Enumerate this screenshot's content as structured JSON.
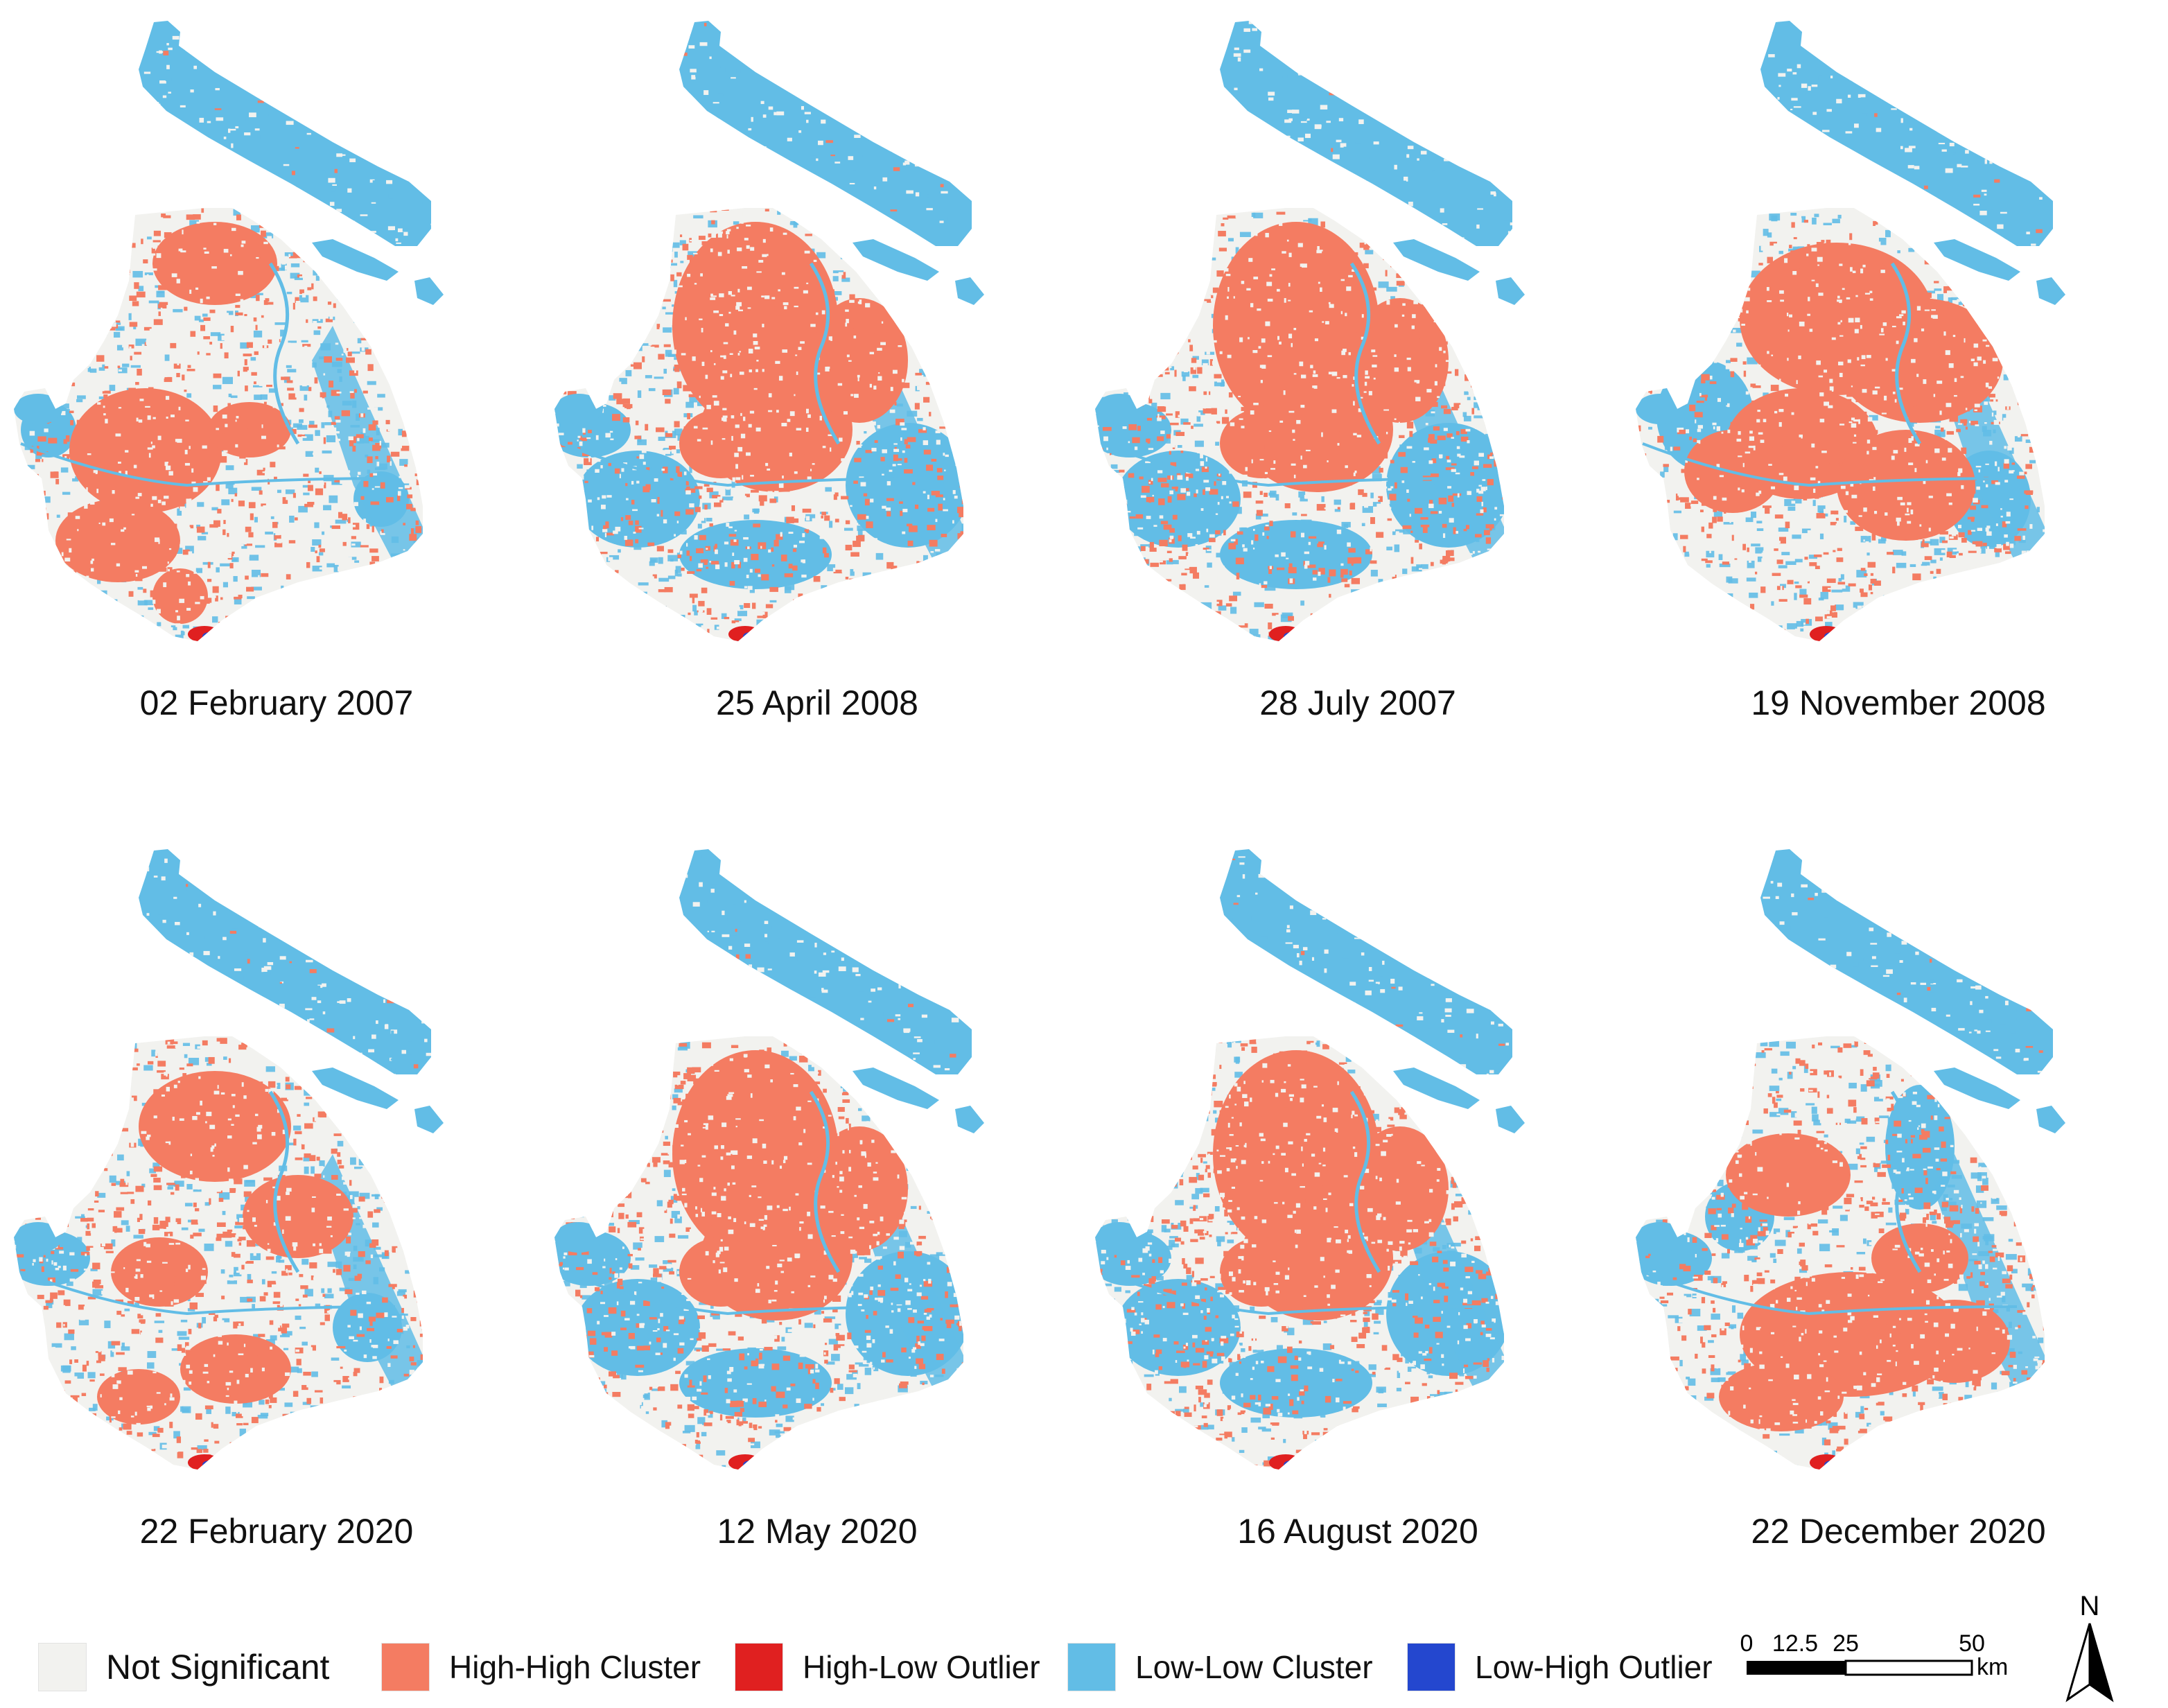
{
  "colors": {
    "not_significant": "#f2f2ef",
    "high_high": "#f47c62",
    "high_low": "#e02020",
    "low_low": "#62bde6",
    "low_high": "#2447cf"
  },
  "maps": [
    {
      "label": "02 February 2007",
      "pattern": "mixed-south"
    },
    {
      "label": "25 April 2008",
      "pattern": "core-hot"
    },
    {
      "label": "28 July 2007",
      "pattern": "core-hot"
    },
    {
      "label": "19 November 2008",
      "pattern": "broad-hot"
    },
    {
      "label": "22 February 2020",
      "pattern": "mixed"
    },
    {
      "label": "12 May 2020",
      "pattern": "core-hot"
    },
    {
      "label": "16 August 2020",
      "pattern": "core-hot"
    },
    {
      "label": "22 December 2020",
      "pattern": "south-hot"
    }
  ],
  "legend": [
    {
      "label": "Not Significant",
      "color": "#f2f2ef"
    },
    {
      "label": "High-High Cluster",
      "color": "#f47c62"
    },
    {
      "label": "High-Low Outlier",
      "color": "#e02020"
    },
    {
      "label": "Low-Low Cluster",
      "color": "#62bde6"
    },
    {
      "label": "Low-High Outlier",
      "color": "#2447cf"
    }
  ],
  "scale_bar": {
    "ticks": [
      "0",
      "12.5",
      "25",
      "50"
    ],
    "unit": "km"
  },
  "north_arrow": {
    "label": "N",
    "icon": "north-arrow-icon"
  }
}
